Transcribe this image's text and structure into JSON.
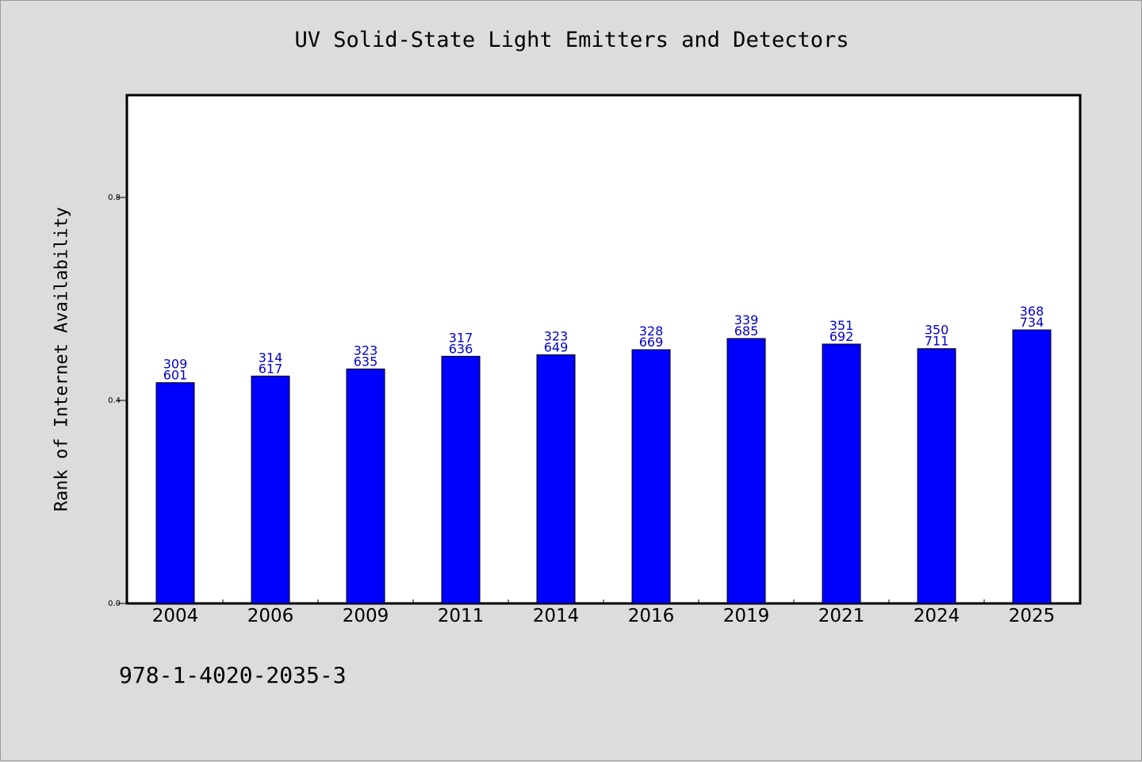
{
  "chart_data": {
    "type": "bar",
    "title": "UV Solid-State Light Emitters and Detectors",
    "ylabel": "Rank of Internet Availability",
    "xlabel": "",
    "categories": [
      "2004",
      "2006",
      "2009",
      "2011",
      "2014",
      "2016",
      "2019",
      "2021",
      "2024",
      "2025"
    ],
    "values": [
      0.435,
      0.448,
      0.462,
      0.487,
      0.49,
      0.5,
      0.522,
      0.511,
      0.502,
      0.539
    ],
    "bar_labels": [
      [
        "309",
        "601"
      ],
      [
        "314",
        "617"
      ],
      [
        "323",
        "635"
      ],
      [
        "317",
        "636"
      ],
      [
        "323",
        "649"
      ],
      [
        "328",
        "669"
      ],
      [
        "339",
        "685"
      ],
      [
        "351",
        "692"
      ],
      [
        "350",
        "711"
      ],
      [
        "368",
        "734"
      ]
    ],
    "ylim": [
      0,
      1.0
    ],
    "yticks": [
      "0.0",
      "0.4",
      "0.8"
    ],
    "grid": false,
    "bar_color": "#0000ff",
    "label_color": "#0000cc"
  },
  "footer": {
    "isbn": "978-1-4020-2035-3"
  }
}
